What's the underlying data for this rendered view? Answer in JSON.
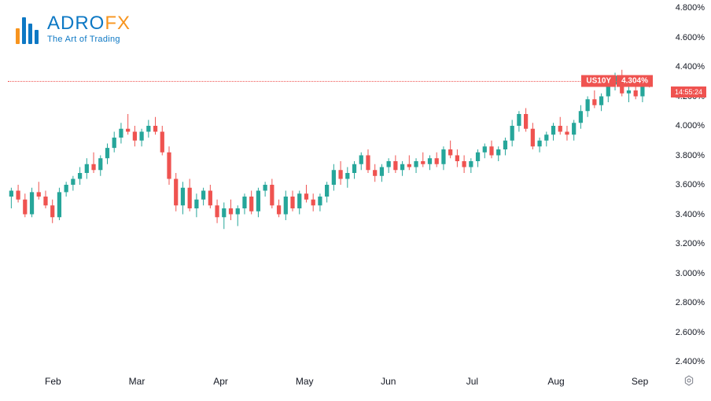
{
  "chart": {
    "type": "candlestick",
    "symbol": "US10Y",
    "current_value": "4.304%",
    "countdown": "14:55:24",
    "background_color": "#ffffff",
    "text_color": "#131722",
    "price_line_color": "#ef5350",
    "up_color": "#26a69a",
    "down_color": "#ef5350",
    "wick_color_up": "#26a69a",
    "wick_color_down": "#ef5350",
    "ylim": [
      2.4,
      4.8
    ],
    "ytick_step": 0.2,
    "y_ticks": [
      "4.800%",
      "4.600%",
      "4.400%",
      "4.200%",
      "4.000%",
      "3.800%",
      "3.600%",
      "3.400%",
      "3.200%",
      "3.000%",
      "2.800%",
      "2.600%",
      "2.400%"
    ],
    "x_labels": [
      "Feb",
      "Mar",
      "Apr",
      "May",
      "Jun",
      "Jul",
      "Aug",
      "Sep"
    ],
    "x_positions": [
      0.07,
      0.2,
      0.33,
      0.46,
      0.59,
      0.72,
      0.85,
      0.98
    ],
    "current_price_y": 4.304,
    "candles": [
      {
        "o": 3.52,
        "h": 3.58,
        "l": 3.44,
        "c": 3.56,
        "dir": "up"
      },
      {
        "o": 3.56,
        "h": 3.6,
        "l": 3.48,
        "c": 3.5,
        "dir": "down"
      },
      {
        "o": 3.5,
        "h": 3.54,
        "l": 3.38,
        "c": 3.4,
        "dir": "down"
      },
      {
        "o": 3.4,
        "h": 3.58,
        "l": 3.38,
        "c": 3.55,
        "dir": "up"
      },
      {
        "o": 3.55,
        "h": 3.62,
        "l": 3.5,
        "c": 3.52,
        "dir": "down"
      },
      {
        "o": 3.52,
        "h": 3.56,
        "l": 3.44,
        "c": 3.46,
        "dir": "down"
      },
      {
        "o": 3.46,
        "h": 3.5,
        "l": 3.34,
        "c": 3.38,
        "dir": "down"
      },
      {
        "o": 3.38,
        "h": 3.58,
        "l": 3.36,
        "c": 3.55,
        "dir": "up"
      },
      {
        "o": 3.55,
        "h": 3.62,
        "l": 3.52,
        "c": 3.6,
        "dir": "up"
      },
      {
        "o": 3.6,
        "h": 3.66,
        "l": 3.56,
        "c": 3.64,
        "dir": "up"
      },
      {
        "o": 3.64,
        "h": 3.72,
        "l": 3.6,
        "c": 3.68,
        "dir": "up"
      },
      {
        "o": 3.68,
        "h": 3.78,
        "l": 3.64,
        "c": 3.74,
        "dir": "up"
      },
      {
        "o": 3.74,
        "h": 3.82,
        "l": 3.68,
        "c": 3.7,
        "dir": "down"
      },
      {
        "o": 3.7,
        "h": 3.8,
        "l": 3.66,
        "c": 3.78,
        "dir": "up"
      },
      {
        "o": 3.78,
        "h": 3.88,
        "l": 3.74,
        "c": 3.85,
        "dir": "up"
      },
      {
        "o": 3.85,
        "h": 3.96,
        "l": 3.82,
        "c": 3.92,
        "dir": "up"
      },
      {
        "o": 3.92,
        "h": 4.02,
        "l": 3.88,
        "c": 3.98,
        "dir": "up"
      },
      {
        "o": 3.98,
        "h": 4.08,
        "l": 3.94,
        "c": 3.96,
        "dir": "down"
      },
      {
        "o": 3.96,
        "h": 4.0,
        "l": 3.86,
        "c": 3.9,
        "dir": "down"
      },
      {
        "o": 3.9,
        "h": 3.98,
        "l": 3.86,
        "c": 3.96,
        "dir": "up"
      },
      {
        "o": 3.96,
        "h": 4.04,
        "l": 3.92,
        "c": 4.0,
        "dir": "up"
      },
      {
        "o": 4.0,
        "h": 4.06,
        "l": 3.94,
        "c": 3.96,
        "dir": "down"
      },
      {
        "o": 3.96,
        "h": 4.0,
        "l": 3.8,
        "c": 3.82,
        "dir": "down"
      },
      {
        "o": 3.82,
        "h": 3.86,
        "l": 3.6,
        "c": 3.64,
        "dir": "down"
      },
      {
        "o": 3.64,
        "h": 3.68,
        "l": 3.42,
        "c": 3.46,
        "dir": "down"
      },
      {
        "o": 3.46,
        "h": 3.62,
        "l": 3.4,
        "c": 3.58,
        "dir": "up"
      },
      {
        "o": 3.58,
        "h": 3.64,
        "l": 3.42,
        "c": 3.44,
        "dir": "down"
      },
      {
        "o": 3.44,
        "h": 3.54,
        "l": 3.38,
        "c": 3.5,
        "dir": "up"
      },
      {
        "o": 3.5,
        "h": 3.58,
        "l": 3.46,
        "c": 3.56,
        "dir": "up"
      },
      {
        "o": 3.56,
        "h": 3.6,
        "l": 3.44,
        "c": 3.46,
        "dir": "down"
      },
      {
        "o": 3.46,
        "h": 3.5,
        "l": 3.34,
        "c": 3.38,
        "dir": "down"
      },
      {
        "o": 3.38,
        "h": 3.48,
        "l": 3.3,
        "c": 3.44,
        "dir": "up"
      },
      {
        "o": 3.44,
        "h": 3.5,
        "l": 3.36,
        "c": 3.4,
        "dir": "down"
      },
      {
        "o": 3.4,
        "h": 3.46,
        "l": 3.32,
        "c": 3.44,
        "dir": "up"
      },
      {
        "o": 3.44,
        "h": 3.54,
        "l": 3.4,
        "c": 3.52,
        "dir": "up"
      },
      {
        "o": 3.52,
        "h": 3.56,
        "l": 3.4,
        "c": 3.42,
        "dir": "down"
      },
      {
        "o": 3.42,
        "h": 3.58,
        "l": 3.38,
        "c": 3.56,
        "dir": "up"
      },
      {
        "o": 3.56,
        "h": 3.62,
        "l": 3.52,
        "c": 3.6,
        "dir": "up"
      },
      {
        "o": 3.6,
        "h": 3.64,
        "l": 3.44,
        "c": 3.46,
        "dir": "down"
      },
      {
        "o": 3.46,
        "h": 3.5,
        "l": 3.38,
        "c": 3.4,
        "dir": "down"
      },
      {
        "o": 3.4,
        "h": 3.56,
        "l": 3.36,
        "c": 3.52,
        "dir": "up"
      },
      {
        "o": 3.52,
        "h": 3.56,
        "l": 3.42,
        "c": 3.44,
        "dir": "down"
      },
      {
        "o": 3.44,
        "h": 3.56,
        "l": 3.4,
        "c": 3.54,
        "dir": "up"
      },
      {
        "o": 3.54,
        "h": 3.6,
        "l": 3.48,
        "c": 3.5,
        "dir": "down"
      },
      {
        "o": 3.5,
        "h": 3.54,
        "l": 3.42,
        "c": 3.46,
        "dir": "down"
      },
      {
        "o": 3.46,
        "h": 3.54,
        "l": 3.42,
        "c": 3.52,
        "dir": "up"
      },
      {
        "o": 3.52,
        "h": 3.62,
        "l": 3.48,
        "c": 3.6,
        "dir": "up"
      },
      {
        "o": 3.6,
        "h": 3.74,
        "l": 3.56,
        "c": 3.7,
        "dir": "up"
      },
      {
        "o": 3.7,
        "h": 3.76,
        "l": 3.6,
        "c": 3.64,
        "dir": "down"
      },
      {
        "o": 3.64,
        "h": 3.72,
        "l": 3.58,
        "c": 3.68,
        "dir": "up"
      },
      {
        "o": 3.68,
        "h": 3.76,
        "l": 3.64,
        "c": 3.74,
        "dir": "up"
      },
      {
        "o": 3.74,
        "h": 3.82,
        "l": 3.7,
        "c": 3.8,
        "dir": "up"
      },
      {
        "o": 3.8,
        "h": 3.84,
        "l": 3.68,
        "c": 3.7,
        "dir": "down"
      },
      {
        "o": 3.7,
        "h": 3.74,
        "l": 3.62,
        "c": 3.66,
        "dir": "down"
      },
      {
        "o": 3.66,
        "h": 3.74,
        "l": 3.62,
        "c": 3.72,
        "dir": "up"
      },
      {
        "o": 3.72,
        "h": 3.78,
        "l": 3.68,
        "c": 3.76,
        "dir": "up"
      },
      {
        "o": 3.76,
        "h": 3.8,
        "l": 3.68,
        "c": 3.7,
        "dir": "down"
      },
      {
        "o": 3.7,
        "h": 3.76,
        "l": 3.66,
        "c": 3.74,
        "dir": "up"
      },
      {
        "o": 3.74,
        "h": 3.8,
        "l": 3.7,
        "c": 3.72,
        "dir": "down"
      },
      {
        "o": 3.72,
        "h": 3.78,
        "l": 3.68,
        "c": 3.76,
        "dir": "up"
      },
      {
        "o": 3.76,
        "h": 3.82,
        "l": 3.72,
        "c": 3.74,
        "dir": "down"
      },
      {
        "o": 3.74,
        "h": 3.8,
        "l": 3.7,
        "c": 3.78,
        "dir": "up"
      },
      {
        "o": 3.78,
        "h": 3.82,
        "l": 3.72,
        "c": 3.74,
        "dir": "down"
      },
      {
        "o": 3.74,
        "h": 3.86,
        "l": 3.7,
        "c": 3.84,
        "dir": "up"
      },
      {
        "o": 3.84,
        "h": 3.9,
        "l": 3.78,
        "c": 3.8,
        "dir": "down"
      },
      {
        "o": 3.8,
        "h": 3.84,
        "l": 3.72,
        "c": 3.76,
        "dir": "down"
      },
      {
        "o": 3.76,
        "h": 3.8,
        "l": 3.68,
        "c": 3.72,
        "dir": "down"
      },
      {
        "o": 3.72,
        "h": 3.78,
        "l": 3.68,
        "c": 3.76,
        "dir": "up"
      },
      {
        "o": 3.76,
        "h": 3.84,
        "l": 3.72,
        "c": 3.82,
        "dir": "up"
      },
      {
        "o": 3.82,
        "h": 3.88,
        "l": 3.78,
        "c": 3.86,
        "dir": "up"
      },
      {
        "o": 3.86,
        "h": 3.9,
        "l": 3.78,
        "c": 3.8,
        "dir": "down"
      },
      {
        "o": 3.8,
        "h": 3.86,
        "l": 3.76,
        "c": 3.84,
        "dir": "up"
      },
      {
        "o": 3.84,
        "h": 3.92,
        "l": 3.8,
        "c": 3.9,
        "dir": "up"
      },
      {
        "o": 3.9,
        "h": 4.04,
        "l": 3.86,
        "c": 4.0,
        "dir": "up"
      },
      {
        "o": 4.0,
        "h": 4.1,
        "l": 3.96,
        "c": 4.08,
        "dir": "up"
      },
      {
        "o": 4.08,
        "h": 4.12,
        "l": 3.96,
        "c": 3.98,
        "dir": "down"
      },
      {
        "o": 3.98,
        "h": 4.02,
        "l": 3.84,
        "c": 3.86,
        "dir": "down"
      },
      {
        "o": 3.86,
        "h": 3.92,
        "l": 3.82,
        "c": 3.9,
        "dir": "up"
      },
      {
        "o": 3.9,
        "h": 3.96,
        "l": 3.86,
        "c": 3.94,
        "dir": "up"
      },
      {
        "o": 3.94,
        "h": 4.02,
        "l": 3.9,
        "c": 4.0,
        "dir": "up"
      },
      {
        "o": 4.0,
        "h": 4.06,
        "l": 3.94,
        "c": 3.96,
        "dir": "down"
      },
      {
        "o": 3.96,
        "h": 4.0,
        "l": 3.9,
        "c": 3.94,
        "dir": "down"
      },
      {
        "o": 3.94,
        "h": 4.04,
        "l": 3.9,
        "c": 4.02,
        "dir": "up"
      },
      {
        "o": 4.02,
        "h": 4.14,
        "l": 3.98,
        "c": 4.1,
        "dir": "up"
      },
      {
        "o": 4.1,
        "h": 4.2,
        "l": 4.06,
        "c": 4.18,
        "dir": "up"
      },
      {
        "o": 4.18,
        "h": 4.24,
        "l": 4.12,
        "c": 4.14,
        "dir": "down"
      },
      {
        "o": 4.14,
        "h": 4.22,
        "l": 4.1,
        "c": 4.2,
        "dir": "up"
      },
      {
        "o": 4.2,
        "h": 4.3,
        "l": 4.16,
        "c": 4.28,
        "dir": "up"
      },
      {
        "o": 4.28,
        "h": 4.36,
        "l": 4.24,
        "c": 4.34,
        "dir": "up"
      },
      {
        "o": 4.34,
        "h": 4.38,
        "l": 4.2,
        "c": 4.22,
        "dir": "down"
      },
      {
        "o": 4.22,
        "h": 4.28,
        "l": 4.16,
        "c": 4.24,
        "dir": "up"
      },
      {
        "o": 4.24,
        "h": 4.3,
        "l": 4.18,
        "c": 4.2,
        "dir": "down"
      },
      {
        "o": 4.2,
        "h": 4.32,
        "l": 4.16,
        "c": 4.3,
        "dir": "up"
      },
      {
        "o": 4.3,
        "h": 4.34,
        "l": 4.26,
        "c": 4.3,
        "dir": "down"
      }
    ]
  },
  "logo": {
    "name_part1": "ADRO",
    "name_part2": "FX",
    "part1_color": "#0d78c4",
    "part2_color": "#f7941e",
    "tagline": "The Art of Trading",
    "bars": [
      {
        "h": 20,
        "c": "#f7941e"
      },
      {
        "h": 34,
        "c": "#0d78c4"
      },
      {
        "h": 26,
        "c": "#0d78c4"
      },
      {
        "h": 18,
        "c": "#0d78c4"
      }
    ]
  }
}
